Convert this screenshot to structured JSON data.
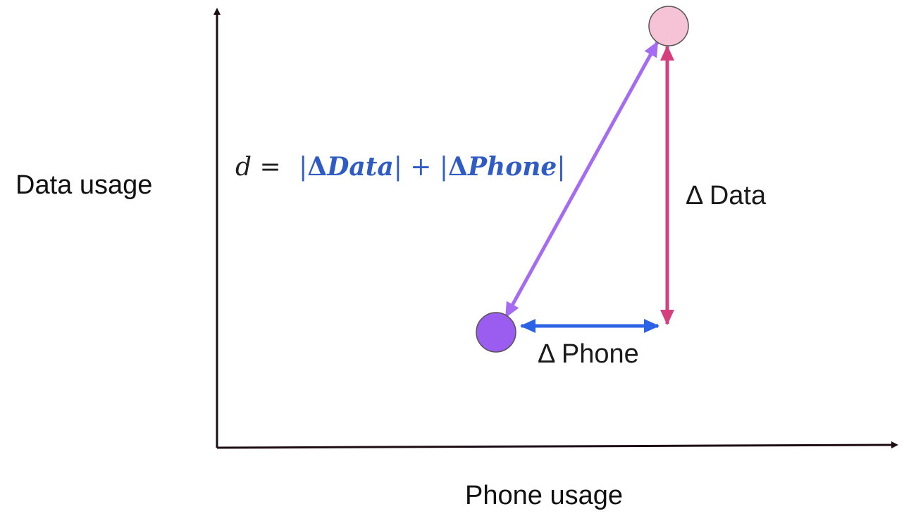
{
  "axes": {
    "x_label": "Phone usage",
    "y_label": "Data usage"
  },
  "formula": {
    "lhs": "d",
    "equals": " = ",
    "bar": "|",
    "delta": "Δ",
    "term1": "Data",
    "plus": " + ",
    "term2": "Phone",
    "lhs_color": "#1f1f1f",
    "rhs_color": "#2f5bc4"
  },
  "labels": {
    "delta_data": "Δ Data",
    "delta_phone": "Δ Phone"
  },
  "points": {
    "point_a_color": "#9b5cf0",
    "point_b_color": "#f6c3d6"
  },
  "arrows": {
    "diagonal_color": "#a56cf2",
    "vertical_color": "#d63f7e",
    "horizontal_color": "#2c63e6",
    "axis_color": "#1e0c14"
  }
}
